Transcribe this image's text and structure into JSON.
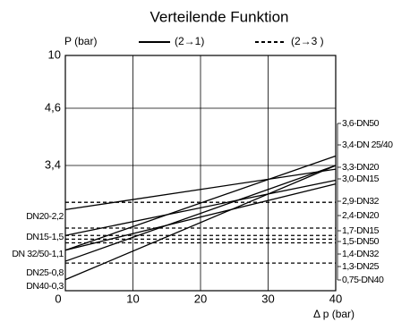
{
  "chart_data": {
    "type": "line",
    "title": "Verteilende Funktion",
    "y_label": "P (bar)",
    "x_label": "Δ p (bar)",
    "x": [
      0,
      40
    ],
    "xlim": [
      0,
      40
    ],
    "xticks": [
      0,
      10,
      20,
      30,
      40
    ],
    "ylim": [
      0,
      10
    ],
    "yticks": [
      {
        "value": 3.4,
        "label": "3,4"
      },
      {
        "value": 4.6,
        "label": "4,6"
      },
      10
    ],
    "series": [
      {
        "name": "(2→1)",
        "color": "#000000",
        "dashed": false,
        "lines": [
          {
            "values": [
              2.2,
              3.3
            ],
            "left_label": "DN20-2,2"
          },
          {
            "values": [
              1.5,
              3.0
            ],
            "left_label": "DN15-1,5"
          },
          {
            "values": [
              1.1,
              3.6
            ],
            "left_label": "DN 32/50-1,1"
          },
          {
            "values": [
              1.1,
              2.9
            ]
          },
          {
            "values": [
              0.8,
              3.4
            ],
            "left_label": "DN25-0,8"
          },
          {
            "values": [
              0.3,
              3.4
            ],
            "left_label": "DN40-0,3"
          }
        ]
      },
      {
        "name": "(2→3 )",
        "color": "#000000",
        "dashed": true,
        "lines": [
          {
            "values": [
              2.4,
              2.4
            ]
          },
          {
            "values": [
              1.7,
              1.7
            ]
          },
          {
            "values": [
              1.5,
              1.5
            ]
          },
          {
            "values": [
              1.4,
              1.4
            ]
          },
          {
            "values": [
              1.3,
              1.3
            ]
          },
          {
            "values": [
              0.75,
              0.75
            ]
          }
        ]
      }
    ],
    "right_labels": [
      "3,6-DN50",
      "3,4-DN 25/40",
      "3,3-DN20",
      "3,0-DN15",
      "2,9-DN32",
      "2,4-DN20",
      "1,7-DN15",
      "1,5-DN50",
      "1,4-DN32",
      "1,3-DN25",
      "0,75-DN40"
    ]
  }
}
